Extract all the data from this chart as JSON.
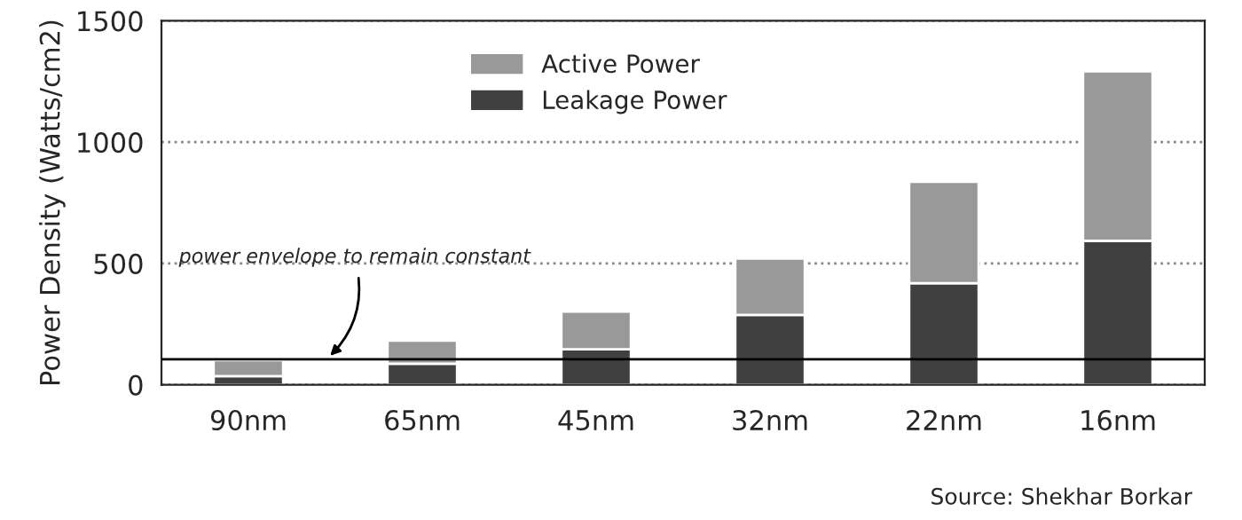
{
  "chart_data": {
    "type": "bar",
    "stacked": true,
    "categories": [
      "90nm",
      "65nm",
      "45nm",
      "32nm",
      "22nm",
      "16nm"
    ],
    "series": [
      {
        "name": "Leakage Power",
        "color": "#404040",
        "values": [
          36,
          87,
          146,
          288,
          419,
          593
        ]
      },
      {
        "name": "Active Power",
        "color": "#999999",
        "values": [
          66,
          95,
          156,
          232,
          418,
          699
        ]
      }
    ],
    "ylabel": "Power Density (Watts/cm2)",
    "ylim": [
      0,
      1500
    ],
    "yticks": [
      0,
      500,
      1000,
      1500
    ],
    "grid": "y",
    "legend": "top",
    "ref_lines": [
      {
        "axis": "y",
        "value": 105,
        "label": "power envelope to remain constant",
        "color": "#000000",
        "line_style": "solid"
      }
    ],
    "annotations": [
      "Source: Shekhar Borkar"
    ]
  }
}
